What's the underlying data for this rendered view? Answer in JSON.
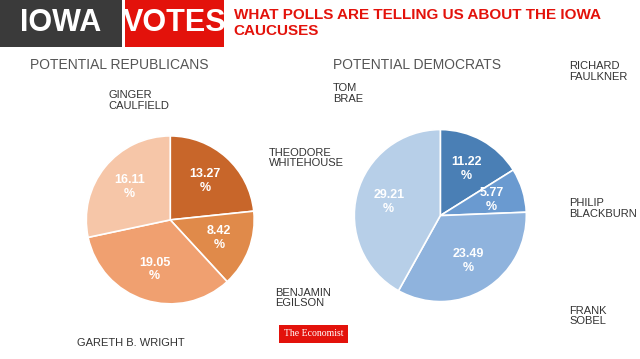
{
  "header": {
    "title_left": "IOWA",
    "title_box": "VOTES",
    "subtitle": "WHAT POLLS ARE TELLING US ABOUT THE IOWA CAUCUSES",
    "source": "The Economist"
  },
  "chart_data": [
    {
      "type": "pie",
      "title": "POTENTIAL REPUBLICANS",
      "categories": [
        "THEODORE WHITEHOUSE",
        "BENJAMIN EGILSON",
        "GARETH B. WRIGHT",
        "GINGER CAULFIELD"
      ],
      "values": [
        13.27,
        8.42,
        19.05,
        16.11
      ],
      "value_labels": [
        "13.27 %",
        "8.42 %",
        "19.05 %",
        "16.11 %"
      ],
      "colors": [
        "#c8662a",
        "#e08a4a",
        "#f0a070",
        "#f6c6a8"
      ],
      "data_labels": true
    },
    {
      "type": "pie",
      "title": "POTENTIAL DEMOCRATS",
      "categories": [
        "RICHARD FAULKNER",
        "PHILIP BLACKBURN",
        "FRANK SOBEL",
        "TOM BRAE"
      ],
      "values": [
        11.22,
        5.77,
        23.49,
        29.21
      ],
      "value_labels": [
        "11.22 %",
        "5.77 %",
        "23.49 %",
        "29.21 %"
      ],
      "colors": [
        "#4a7fb5",
        "#6a9ad0",
        "#8fb3dd",
        "#b7cfe8"
      ],
      "data_labels": true
    }
  ]
}
